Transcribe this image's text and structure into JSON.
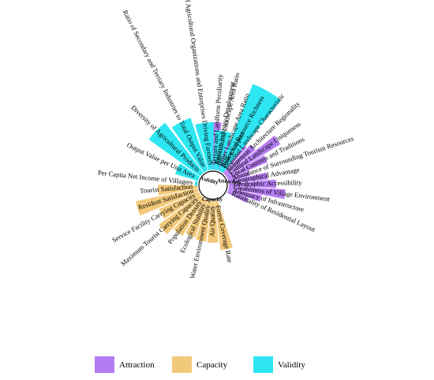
{
  "chart_data": {
    "type": "bar",
    "layout": "radial",
    "legend_position": "bottom",
    "grid": false,
    "groups": [
      {
        "name": "Attraction",
        "color": "#b57cf2"
      },
      {
        "name": "Capacity",
        "color": "#f2c97a"
      },
      {
        "name": "Validity",
        "color": "#2ee6f2"
      }
    ],
    "bars": [
      {
        "label": "Terrain and Landform Peculiarity",
        "group": "Attraction",
        "value": 0.06
      },
      {
        "label": "Agricultural Landscape Area Ratio",
        "group": "Attraction",
        "value": 0.041
      },
      {
        "label": "Water Landscape Area Ratio",
        "group": "Attraction",
        "value": 0.04
      },
      {
        "label": "Biological Resource Richness",
        "group": "Attraction",
        "value": 0.042
      },
      {
        "label": "Seasonal Landscape Characteristic",
        "group": "Attraction",
        "value": 0.044
      },
      {
        "label": "Indigenous Architecture Regionality",
        "group": "Attraction",
        "value": 0.05
      },
      {
        "label": "Cultural Landscape Uniqueness",
        "group": "Attraction",
        "value": 0.08
      },
      {
        "label": "Local Customs and Traditions",
        "group": "Attraction",
        "value": 0.055
      },
      {
        "label": "Abundance of Surrounding Tourism Resources",
        "group": "Attraction",
        "value": 0.028
      },
      {
        "label": "Geographical Advantage",
        "group": "Attraction",
        "value": 0.05
      },
      {
        "label": "Geographic Accessibility",
        "group": "Attraction",
        "value": 0.06
      },
      {
        "label": "Cleanliness of Village Environment",
        "group": "Attraction",
        "value": 0.072
      },
      {
        "label": "Adequacy of Infrastructure",
        "group": "Attraction",
        "value": 0.043
      },
      {
        "label": "Rationality of Residential Layout",
        "group": "Attraction",
        "value": 0.028
      },
      {
        "label": "Forest Coverage Rate",
        "group": "Capacity",
        "value": 0.063
      },
      {
        "label": "Air Quality",
        "group": "Capacity",
        "value": 0.053
      },
      {
        "label": "Water Environment Quality",
        "group": "Capacity",
        "value": 0.052
      },
      {
        "label": "Ecological Stability",
        "group": "Capacity",
        "value": 0.05
      },
      {
        "label": "Population Density",
        "group": "Capacity",
        "value": 0.055
      },
      {
        "label": "Maximum Tourist Carrying Capacity",
        "group": "Capacity",
        "value": 0.065
      },
      {
        "label": "Service Facility Carrying Capacity",
        "group": "Capacity",
        "value": 0.055
      },
      {
        "label": "Resident Satisfaction",
        "group": "Capacity",
        "value": 0.08
      },
      {
        "label": "Tourist Satisfaction",
        "group": "Capacity",
        "value": 0.05
      },
      {
        "label": "Per Capita Net Income of Villagers",
        "group": "Validity",
        "value": 0.003
      },
      {
        "label": "Output Value per Unit Area",
        "group": "Validity",
        "value": 0.03
      },
      {
        "label": "Diversity of Agricultural Products",
        "group": "Validity",
        "value": 0.08
      },
      {
        "label": "Ratio of Secondary and Terriary Industries to Total Output Value",
        "group": "Validity",
        "value": 0.07
      },
      {
        "label": "Proportion of Agricultural Organizations and Enterprises Driving Farmers",
        "group": "Validity",
        "value": 0.06
      },
      {
        "label": "Tourism Industry Development",
        "group": "Validity",
        "value": 0.05
      },
      {
        "label": "Policy Support",
        "group": "Validity",
        "value": 0.118
      }
    ]
  }
}
